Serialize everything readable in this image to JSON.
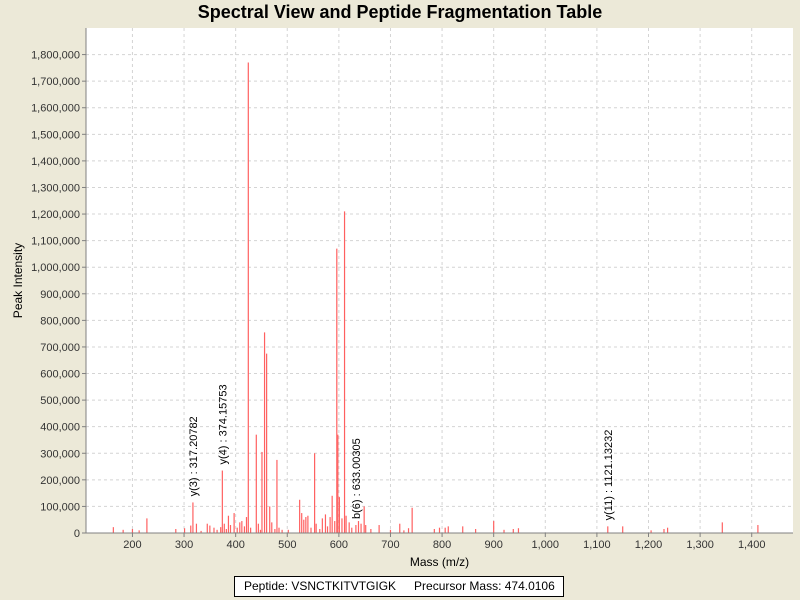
{
  "chart_data": {
    "type": "bar",
    "title": "Spectral View and Peptide Fragmentation Table",
    "xlabel": "Mass (m/z)",
    "ylabel": "Peak Intensity",
    "xlim": [
      110,
      1480
    ],
    "ylim": [
      0,
      1900000
    ],
    "xticks": [
      {
        "v": 200,
        "label": "200"
      },
      {
        "v": 300,
        "label": "300"
      },
      {
        "v": 400,
        "label": "400"
      },
      {
        "v": 500,
        "label": "500"
      },
      {
        "v": 600,
        "label": "600"
      },
      {
        "v": 700,
        "label": "700"
      },
      {
        "v": 800,
        "label": "800"
      },
      {
        "v": 900,
        "label": "900"
      },
      {
        "v": 1000,
        "label": "1,000"
      },
      {
        "v": 1100,
        "label": "1,100"
      },
      {
        "v": 1200,
        "label": "1,200"
      },
      {
        "v": 1300,
        "label": "1,300"
      },
      {
        "v": 1400,
        "label": "1,400"
      }
    ],
    "yticks": [
      {
        "v": 0,
        "label": "0"
      },
      {
        "v": 100000,
        "label": "100,000"
      },
      {
        "v": 200000,
        "label": "200,000"
      },
      {
        "v": 300000,
        "label": "300,000"
      },
      {
        "v": 400000,
        "label": "400,000"
      },
      {
        "v": 500000,
        "label": "500,000"
      },
      {
        "v": 600000,
        "label": "600,000"
      },
      {
        "v": 700000,
        "label": "700,000"
      },
      {
        "v": 800000,
        "label": "800,000"
      },
      {
        "v": 900000,
        "label": "900,000"
      },
      {
        "v": 1000000,
        "label": "1,000,000"
      },
      {
        "v": 1100000,
        "label": "1,100,000"
      },
      {
        "v": 1200000,
        "label": "1,200,000"
      },
      {
        "v": 1300000,
        "label": "1,300,000"
      },
      {
        "v": 1400000,
        "label": "1,400,000"
      },
      {
        "v": 1500000,
        "label": "1,500,000"
      },
      {
        "v": 1600000,
        "label": "1,600,000"
      },
      {
        "v": 1700000,
        "label": "1,700,000"
      },
      {
        "v": 1800000,
        "label": "1,800,000"
      }
    ],
    "grid": true,
    "peak_color": "#ff6060",
    "peaks": [
      [
        163,
        22000
      ],
      [
        182,
        12000
      ],
      [
        200,
        15000
      ],
      [
        213,
        10000
      ],
      [
        228,
        55000
      ],
      [
        284,
        15000
      ],
      [
        301,
        18000
      ],
      [
        313,
        28000
      ],
      [
        317.2,
        115000
      ],
      [
        324,
        35000
      ],
      [
        333,
        8000
      ],
      [
        345,
        35000
      ],
      [
        350,
        28000
      ],
      [
        358,
        20000
      ],
      [
        364,
        12000
      ],
      [
        371,
        22000
      ],
      [
        374.2,
        235000
      ],
      [
        378,
        35000
      ],
      [
        382,
        15000
      ],
      [
        386,
        65000
      ],
      [
        390,
        30000
      ],
      [
        397,
        75000
      ],
      [
        403,
        20000
      ],
      [
        408,
        40000
      ],
      [
        412,
        45000
      ],
      [
        417,
        25000
      ],
      [
        421,
        60000
      ],
      [
        424.5,
        1770000
      ],
      [
        429,
        20000
      ],
      [
        440,
        370000
      ],
      [
        444,
        35000
      ],
      [
        448,
        12000
      ],
      [
        451,
        305000
      ],
      [
        456,
        755000
      ],
      [
        460,
        675000
      ],
      [
        466,
        100000
      ],
      [
        470,
        40000
      ],
      [
        476,
        15000
      ],
      [
        480,
        275000
      ],
      [
        484,
        20000
      ],
      [
        490,
        12000
      ],
      [
        502,
        12000
      ],
      [
        524,
        125000
      ],
      [
        528,
        75000
      ],
      [
        532,
        50000
      ],
      [
        536,
        60000
      ],
      [
        540,
        65000
      ],
      [
        546,
        20000
      ],
      [
        553,
        300000
      ],
      [
        556,
        35000
      ],
      [
        563,
        15000
      ],
      [
        568,
        55000
      ],
      [
        574,
        70000
      ],
      [
        578,
        25000
      ],
      [
        583,
        60000
      ],
      [
        587,
        140000
      ],
      [
        592,
        45000
      ],
      [
        596,
        1070000
      ],
      [
        598,
        370000
      ],
      [
        601,
        135000
      ],
      [
        606,
        55000
      ],
      [
        611,
        1210000
      ],
      [
        614,
        65000
      ],
      [
        620,
        40000
      ],
      [
        625,
        20000
      ],
      [
        633,
        30000
      ],
      [
        638,
        45000
      ],
      [
        643,
        35000
      ],
      [
        649,
        100000
      ],
      [
        652,
        30000
      ],
      [
        662,
        15000
      ],
      [
        678,
        30000
      ],
      [
        700,
        12000
      ],
      [
        718,
        35000
      ],
      [
        726,
        10000
      ],
      [
        735,
        18000
      ],
      [
        742,
        95000
      ],
      [
        785,
        15000
      ],
      [
        795,
        20000
      ],
      [
        806,
        20000
      ],
      [
        812,
        25000
      ],
      [
        840,
        25000
      ],
      [
        865,
        15000
      ],
      [
        900,
        45000
      ],
      [
        920,
        12000
      ],
      [
        938,
        15000
      ],
      [
        948,
        18000
      ],
      [
        1121.1,
        25000
      ],
      [
        1150,
        25000
      ],
      [
        1205,
        10000
      ],
      [
        1230,
        15000
      ],
      [
        1237,
        20000
      ],
      [
        1343,
        40000
      ],
      [
        1412,
        30000
      ]
    ],
    "annotations": [
      {
        "x": 317.2,
        "y": 115000,
        "label": "y(3) : 317.20782"
      },
      {
        "x": 374.2,
        "y": 235000,
        "label": "y(4) : 374.15753"
      },
      {
        "x": 633.0,
        "y": 30000,
        "label": "b(6) : 633.00305"
      },
      {
        "x": 1121.1,
        "y": 25000,
        "label": "y(11) : 1121.13232"
      }
    ]
  },
  "footer": {
    "peptide": "Peptide: VSNCTKITVTGIGK",
    "precursor": "Precursor Mass: 474.0106"
  }
}
